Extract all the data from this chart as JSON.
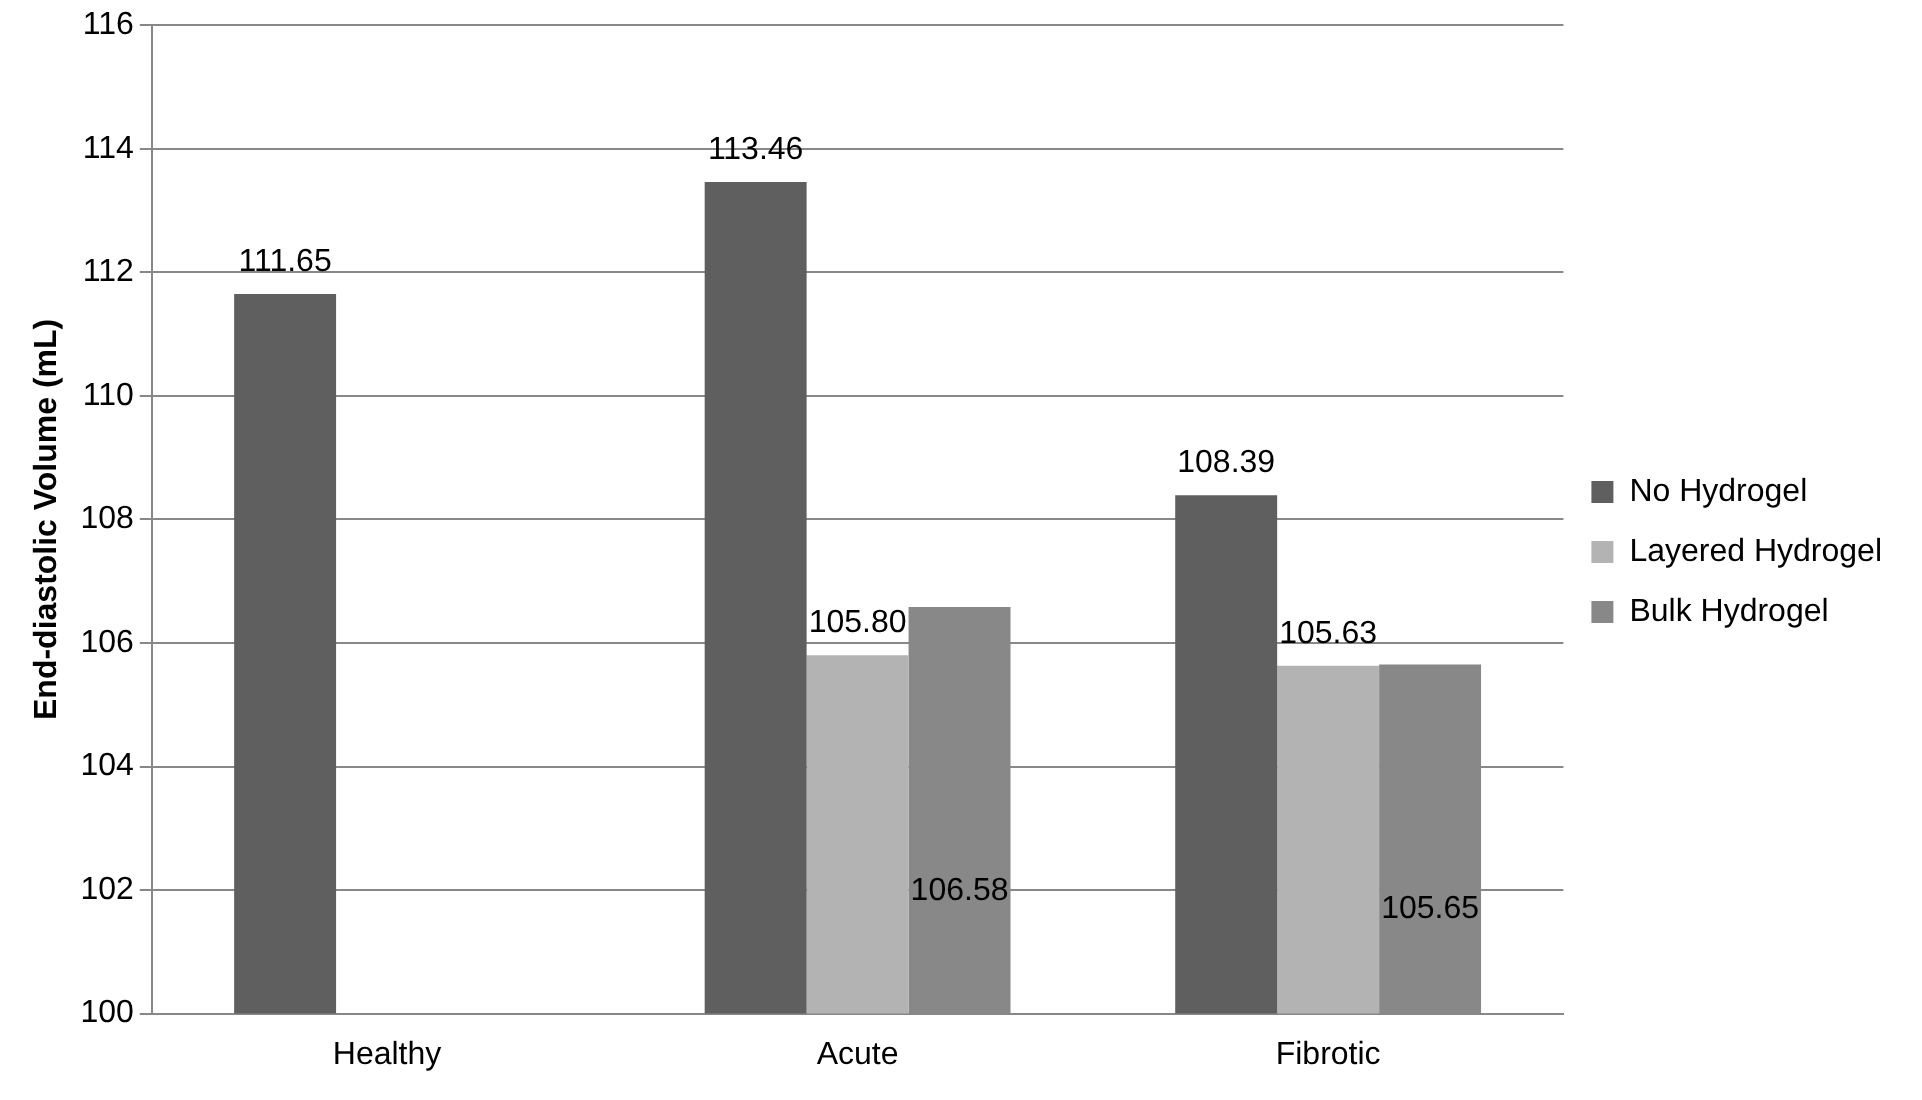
{
  "chart_data": {
    "type": "bar",
    "ylabel": "End-diastolic Volume (mL)",
    "categories": [
      "Healthy",
      "Acute",
      "Fibrotic"
    ],
    "series": [
      {
        "name": "No Hydrogel",
        "color": "#5f5f5f",
        "values": [
          111.65,
          113.46,
          108.39
        ],
        "value_labels": [
          "111.65",
          "113.46",
          "108.39"
        ]
      },
      {
        "name": "Layered Hydrogel",
        "color": "#b3b3b3",
        "values": [
          null,
          105.8,
          105.63
        ],
        "value_labels": [
          null,
          "105.80",
          "105.63"
        ]
      },
      {
        "name": "Bulk Hydrogel",
        "color": "#888888",
        "values": [
          null,
          106.58,
          105.65
        ],
        "value_labels": [
          null,
          "106.58",
          "105.65"
        ]
      }
    ],
    "ylim": [
      100,
      116
    ],
    "yticks": [
      100,
      102,
      104,
      106,
      108,
      110,
      112,
      114,
      116
    ],
    "grid": "y",
    "legend": "right"
  }
}
